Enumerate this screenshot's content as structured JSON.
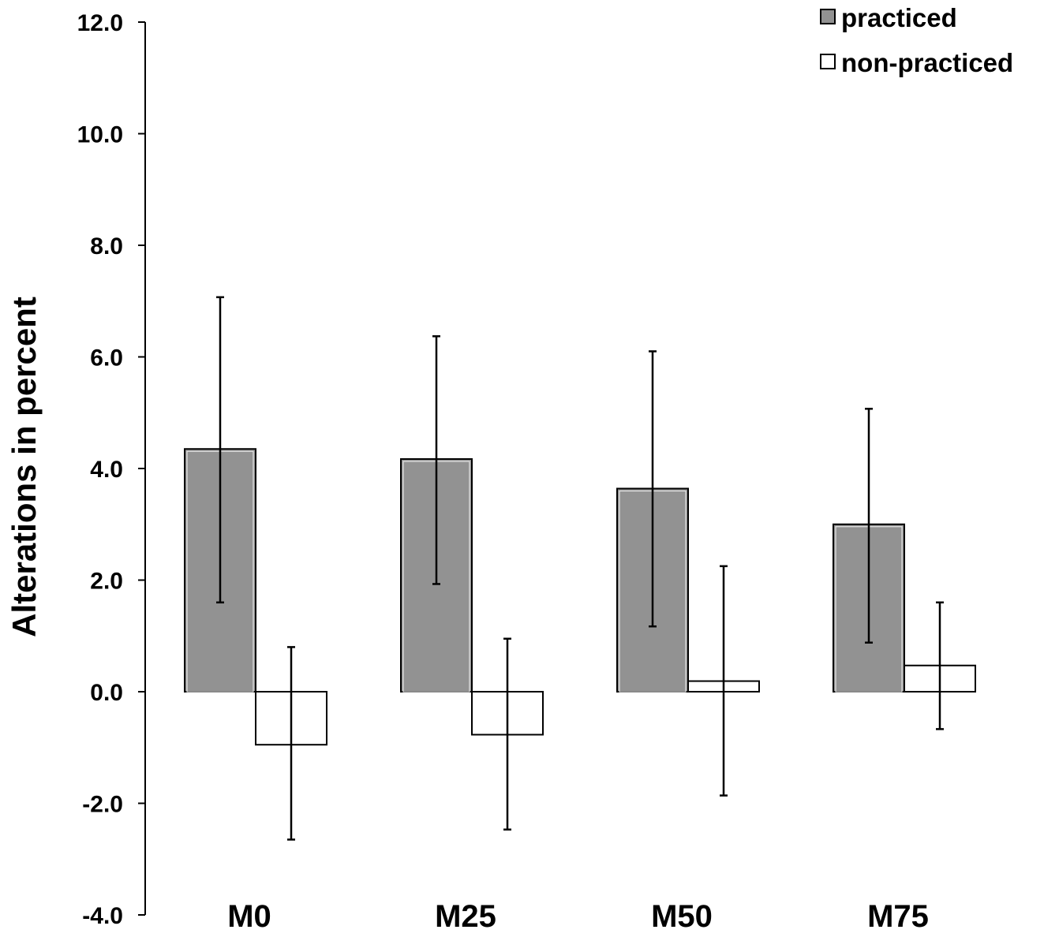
{
  "chart_data": {
    "type": "bar",
    "title": "",
    "xlabel": "",
    "ylabel": "Alterations in percent",
    "ylim": [
      -4.0,
      12.0
    ],
    "yticks": [
      12.0,
      10.0,
      8.0,
      6.0,
      4.0,
      2.0,
      0.0,
      -2.0,
      -4.0
    ],
    "ytick_labels": [
      "12.0",
      "10.0",
      "8.0",
      "6.0",
      "4.0",
      "2.0",
      "0.0",
      "-2.0",
      "-4.0"
    ],
    "grid": false,
    "legend_position": "top-right",
    "categories": [
      "M0",
      "M25",
      "M50",
      "M75"
    ],
    "series": [
      {
        "name": "practiced",
        "color": "#929292",
        "values": [
          4.35,
          4.17,
          3.64,
          3.0
        ],
        "error_low": [
          1.6,
          1.93,
          1.17,
          0.88
        ],
        "error_high": [
          7.07,
          6.37,
          6.1,
          5.07
        ]
      },
      {
        "name": "non-practiced",
        "color": "#ffffff",
        "values": [
          -0.95,
          -0.77,
          0.19,
          0.47
        ],
        "error_low": [
          -2.65,
          -2.47,
          -1.86,
          -0.67
        ],
        "error_high": [
          0.8,
          0.95,
          2.25,
          1.6
        ]
      }
    ]
  }
}
